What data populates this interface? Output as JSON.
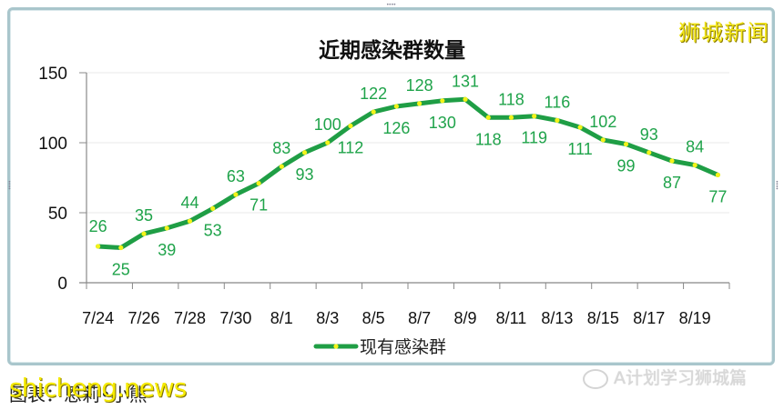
{
  "chart_data": {
    "type": "line",
    "title": "近期感染群数量",
    "xlabel": "",
    "ylabel": "",
    "ylim": [
      0,
      150
    ],
    "yticks": [
      0,
      50,
      100,
      150
    ],
    "grid": true,
    "legend_position": "bottom",
    "x": [
      "7/24",
      "7/25",
      "7/26",
      "7/27",
      "7/28",
      "7/29",
      "7/30",
      "7/31",
      "8/1",
      "8/2",
      "8/3",
      "8/4",
      "8/5",
      "8/6",
      "8/7",
      "8/8",
      "8/9",
      "8/10",
      "8/11",
      "8/12",
      "8/13",
      "8/14",
      "8/15",
      "8/16",
      "8/17",
      "8/18",
      "8/19",
      "8/20"
    ],
    "xtick_labels": [
      "7/24",
      "7/26",
      "7/28",
      "7/30",
      "8/1",
      "8/3",
      "8/5",
      "8/7",
      "8/9",
      "8/11",
      "8/13",
      "8/15",
      "8/17",
      "8/19"
    ],
    "series": [
      {
        "name": "现有感染群",
        "color": "#1f9e45",
        "marker_color": "#f3f31a",
        "values": [
          26,
          25,
          35,
          39,
          44,
          53,
          63,
          71,
          83,
          93,
          100,
          112,
          122,
          126,
          128,
          130,
          131,
          118,
          118,
          119,
          116,
          111,
          102,
          99,
          93,
          87,
          84,
          77
        ]
      }
    ]
  },
  "header": {
    "title": "近期感染群数量",
    "brand": "狮城新闻"
  },
  "legend": {
    "label": "现有感染群"
  },
  "footer": {
    "credit": "图表：恩莉•小熊",
    "watermark": "shicheng.news",
    "wechat_account": "A计划学习狮城篇"
  },
  "colors": {
    "line": "#1f9e45",
    "marker": "#f3f31a",
    "label": "#1fa34a",
    "grid": "#e8e8e8",
    "frame": "#a9c6cc"
  }
}
